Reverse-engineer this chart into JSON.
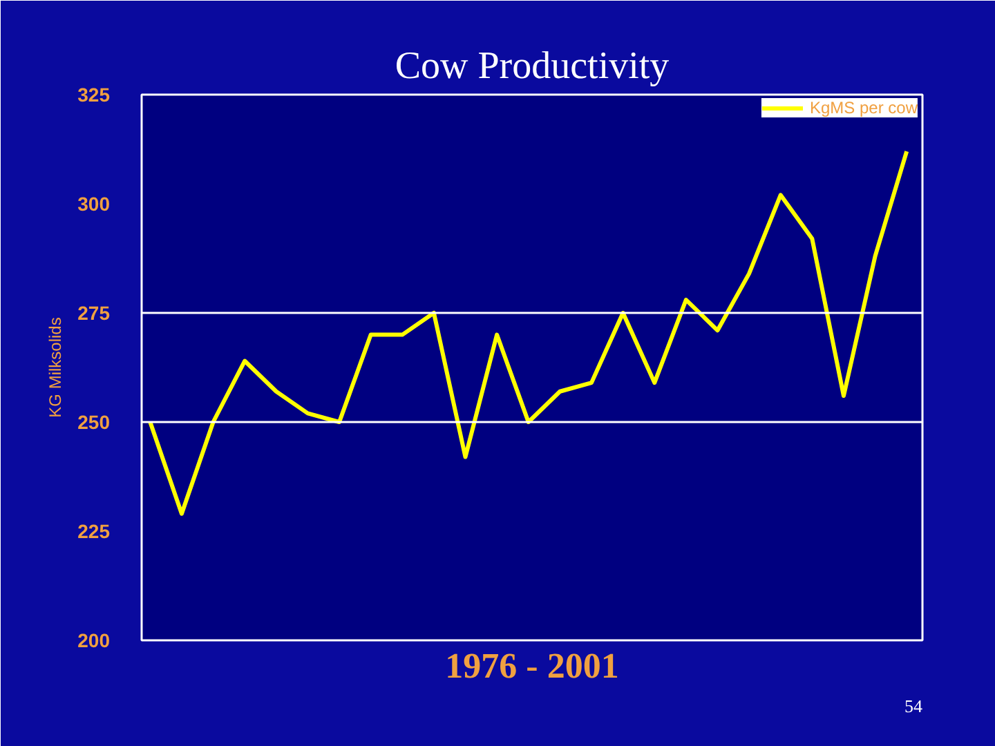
{
  "chart_data": {
    "type": "line",
    "title": "Cow Productivity",
    "xlabel": "1976 - 2001",
    "ylabel": "KG Milksolids",
    "annotations": [
      "54"
    ],
    "categories": [
      null,
      null,
      null,
      null,
      null,
      null,
      null,
      null,
      null,
      null,
      null,
      null,
      null,
      null,
      null,
      null,
      null,
      null,
      null,
      null,
      null,
      null,
      null,
      null,
      null
    ],
    "series": [
      {
        "name": "KgMS per cow",
        "color": "#ffff00",
        "values": [
          250,
          229,
          250,
          264,
          257,
          252,
          250,
          270,
          270,
          275,
          242,
          270,
          250,
          257,
          259,
          275,
          259,
          278,
          271,
          284,
          302,
          292,
          256,
          288,
          312
        ]
      }
    ],
    "ylim": [
      200,
      325
    ],
    "yticks": [
      200,
      225,
      250,
      275,
      300,
      325
    ],
    "grid": false,
    "ref_lines": [
      {
        "axis": "y",
        "value": 250,
        "color": "#ffffff"
      },
      {
        "axis": "y",
        "value": 275,
        "color": "#ffffff"
      }
    ],
    "legend": "top right",
    "tick_labels": "y",
    "line_style": "solid"
  }
}
